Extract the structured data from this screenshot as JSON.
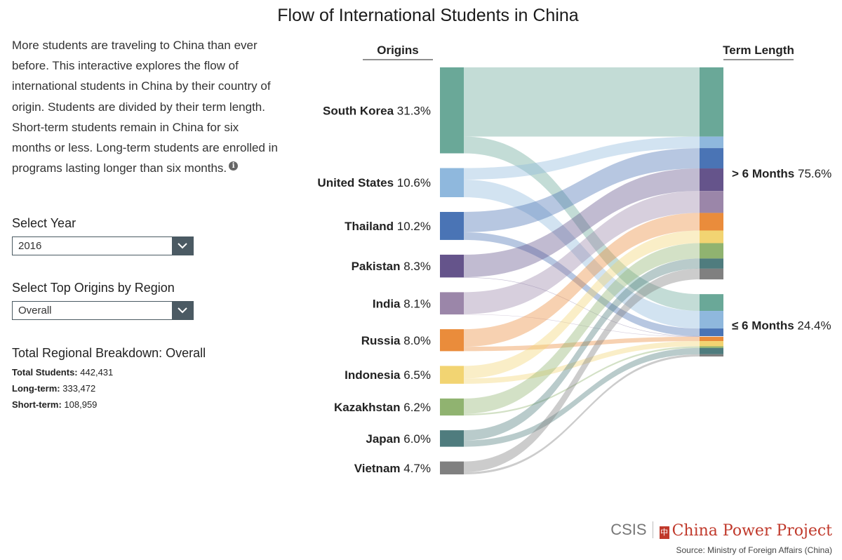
{
  "title": "Flow of International Students in China",
  "intro": "More students are traveling to China than ever before. This interactive explores the flow of international students in China by their country of origin. Students are divided by their term length. Short-term students remain in China for six months or less. Long-term students are enrolled in programs lasting longer than six months.",
  "controls": {
    "year_label": "Select Year",
    "year_value": "2016",
    "region_label": "Select Top Origins by Region",
    "region_value": "Overall"
  },
  "breakdown": {
    "title": "Total Regional Breakdown: Overall",
    "total_label": "Total Students:",
    "total_value": "442,431",
    "long_label": "Long-term:",
    "long_value": "333,472",
    "short_label": "Short-term:",
    "short_value": "108,959"
  },
  "footer": {
    "brand_csis": "CSIS",
    "brand_cpp": "China Power Project",
    "source": "Source: Ministry of Foreign Affairs (China)"
  },
  "chart_data": {
    "type": "sankey",
    "origins_header": "Origins",
    "targets_header": "Term Length",
    "origins": [
      {
        "name": "South Korea",
        "pct": "31.3%",
        "value": 31.3,
        "long": 25.2,
        "short": 6.1,
        "color": "#6aa898"
      },
      {
        "name": "United States",
        "pct": "10.6%",
        "value": 10.6,
        "long": 4.2,
        "short": 6.4,
        "color": "#8fb8dd"
      },
      {
        "name": "Thailand",
        "pct": "10.2%",
        "value": 10.2,
        "long": 7.4,
        "short": 2.8,
        "color": "#4a74b5"
      },
      {
        "name": "Pakistan",
        "pct": "8.3%",
        "value": 8.3,
        "long": 8.2,
        "short": 0.1,
        "color": "#65548b"
      },
      {
        "name": "India",
        "pct": "8.1%",
        "value": 8.1,
        "long": 8.0,
        "short": 0.1,
        "color": "#9b86a9"
      },
      {
        "name": "Russia",
        "pct": "8.0%",
        "value": 8.0,
        "long": 6.4,
        "short": 1.6,
        "color": "#ea8c3b"
      },
      {
        "name": "Indonesia",
        "pct": "6.5%",
        "value": 6.5,
        "long": 4.6,
        "short": 1.9,
        "color": "#f2d472"
      },
      {
        "name": "Kazakhstan",
        "pct": "6.2%",
        "value": 6.2,
        "long": 5.6,
        "short": 0.6,
        "color": "#90b370"
      },
      {
        "name": "Japan",
        "pct": "6.0%",
        "value": 6.0,
        "long": 3.7,
        "short": 2.3,
        "color": "#4f7c7e"
      },
      {
        "name": "Vietnam",
        "pct": "4.7%",
        "value": 4.7,
        "long": 3.9,
        "short": 0.8,
        "color": "#808080"
      }
    ],
    "targets": [
      {
        "name": "> 6 Months",
        "pct": "75.6%",
        "value": 75.6
      },
      {
        "name": "≤ 6 Months",
        "pct": "24.4%",
        "value": 24.4
      }
    ]
  }
}
